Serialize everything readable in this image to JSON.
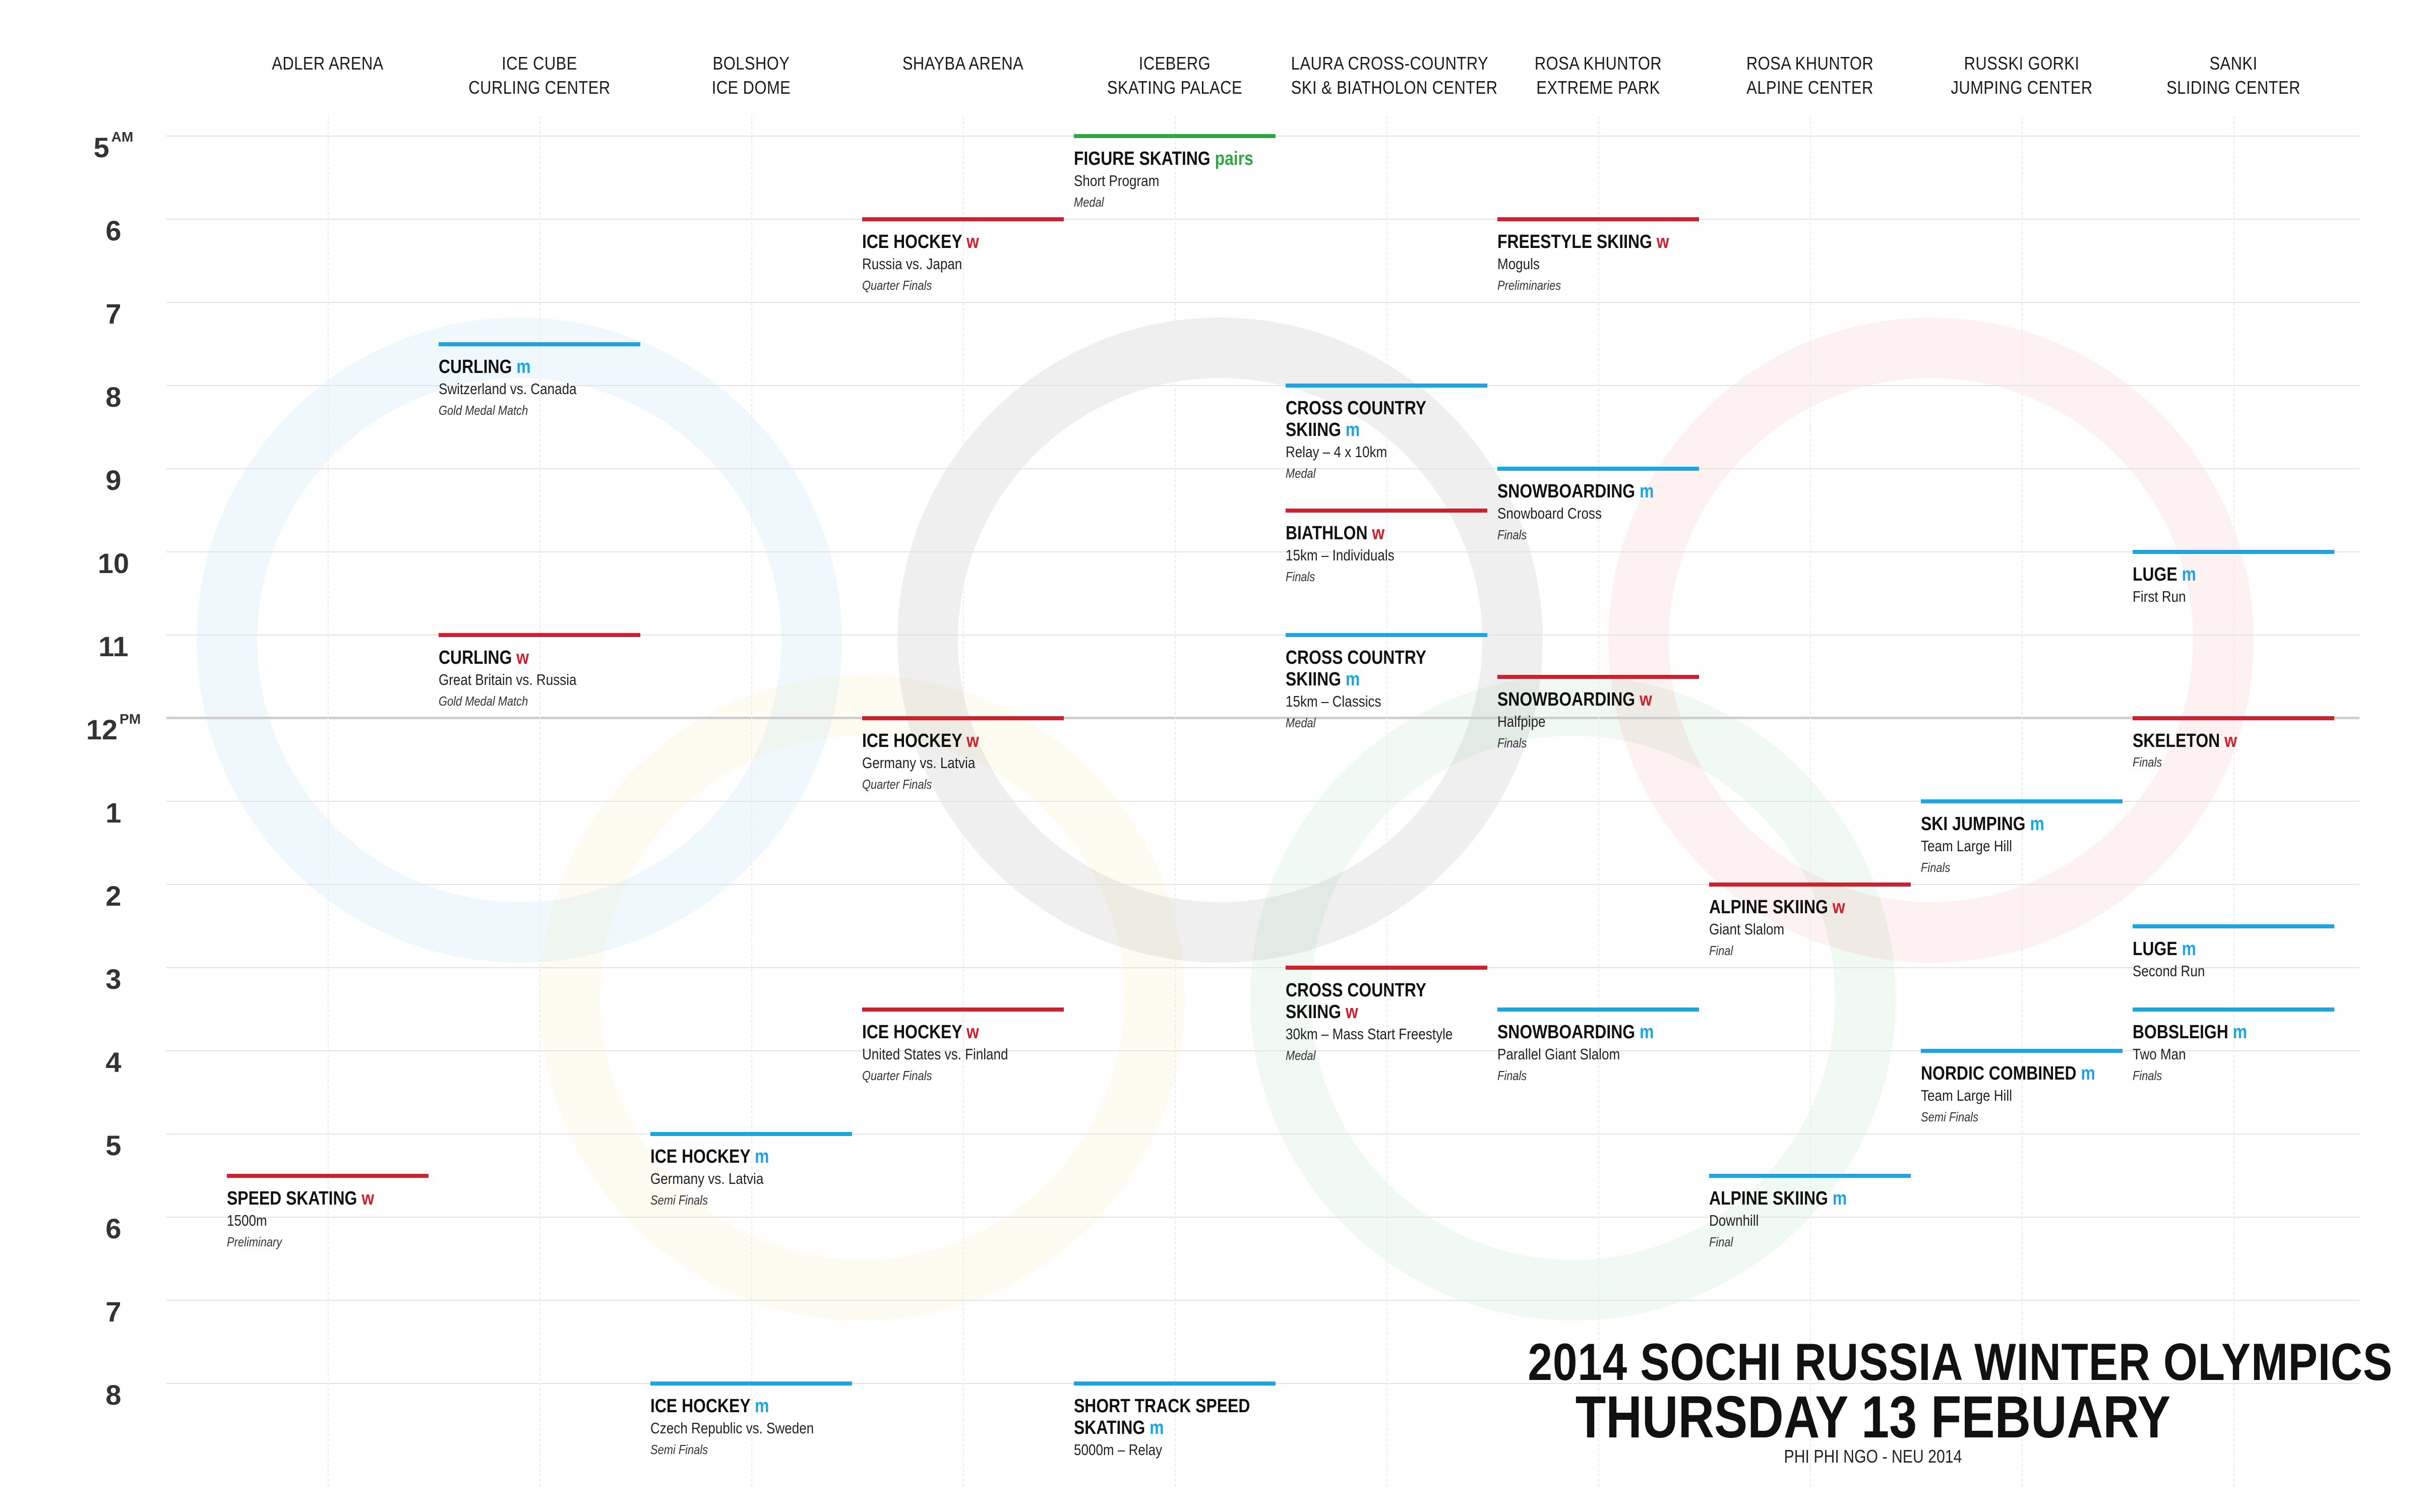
{
  "colors": {
    "women": "#d0202e",
    "men": "#1ba6e3",
    "pairs": "#2ea844",
    "ring_blue": "#1ba6e3",
    "ring_yellow": "#f6c233",
    "ring_black": "#222222",
    "ring_green": "#2ea844",
    "ring_red": "#e03a3e"
  },
  "venues": [
    {
      "lines": [
        "ADLER ARENA"
      ]
    },
    {
      "lines": [
        "ICE CUBE",
        "CURLING CENTER"
      ]
    },
    {
      "lines": [
        "BOLSHOY",
        "ICE DOME"
      ]
    },
    {
      "lines": [
        "SHAYBA ARENA"
      ]
    },
    {
      "lines": [
        "ICEBERG",
        "SKATING PALACE"
      ]
    },
    {
      "lines": [
        "LAURA CROSS-COUNTRY",
        "SKI & BIATHOLON CENTER"
      ]
    },
    {
      "lines": [
        "ROSA KHUNTOR",
        "EXTREME PARK"
      ]
    },
    {
      "lines": [
        "ROSA KHUNTOR",
        "ALPINE CENTER"
      ]
    },
    {
      "lines": [
        "RUSSKI GORKI",
        "JUMPING CENTER"
      ]
    },
    {
      "lines": [
        "SANKI",
        "SLIDING CENTER"
      ]
    }
  ],
  "hours": [
    {
      "label": "5",
      "suffix": "AM"
    },
    {
      "label": "6",
      "suffix": ""
    },
    {
      "label": "7",
      "suffix": ""
    },
    {
      "label": "8",
      "suffix": ""
    },
    {
      "label": "9",
      "suffix": ""
    },
    {
      "label": "10",
      "suffix": ""
    },
    {
      "label": "11",
      "suffix": ""
    },
    {
      "label": "12",
      "suffix": "PM"
    },
    {
      "label": "1",
      "suffix": ""
    },
    {
      "label": "2",
      "suffix": ""
    },
    {
      "label": "3",
      "suffix": ""
    },
    {
      "label": "4",
      "suffix": ""
    },
    {
      "label": "5",
      "suffix": ""
    },
    {
      "label": "6",
      "suffix": ""
    },
    {
      "label": "7",
      "suffix": ""
    },
    {
      "label": "8",
      "suffix": ""
    }
  ],
  "events": [
    {
      "venue": 4,
      "start": 5.0,
      "name": [
        "FIGURE SKATING"
      ],
      "tag": "pairs",
      "kind": "pairs",
      "detail": "Short Program",
      "stage": "Medal"
    },
    {
      "venue": 3,
      "start": 6.0,
      "name": [
        "ICE HOCKEY"
      ],
      "tag": "w",
      "kind": "women",
      "detail": "Russia vs. Japan",
      "stage": "Quarter Finals"
    },
    {
      "venue": 6,
      "start": 6.0,
      "name": [
        "FREESTYLE SKIING"
      ],
      "tag": "w",
      "kind": "women",
      "detail": "Moguls",
      "stage": "Preliminaries"
    },
    {
      "venue": 1,
      "start": 7.5,
      "name": [
        "CURLING"
      ],
      "tag": "m",
      "kind": "men",
      "detail": "Switzerland vs. Canada",
      "stage": "Gold Medal Match"
    },
    {
      "venue": 5,
      "start": 8.0,
      "name": [
        "CROSS COUNTRY",
        "SKIING"
      ],
      "tag": "m",
      "kind": "men",
      "detail": "Relay – 4 x 10km",
      "stage": "Medal"
    },
    {
      "venue": 6,
      "start": 9.0,
      "name": [
        "SNOWBOARDING"
      ],
      "tag": "m",
      "kind": "men",
      "detail": "Snowboard Cross",
      "stage": "Finals"
    },
    {
      "venue": 5,
      "start": 9.5,
      "name": [
        "BIATHLON"
      ],
      "tag": "w",
      "kind": "women",
      "detail": "15km – Individuals",
      "stage": "Finals"
    },
    {
      "venue": 9,
      "start": 10.0,
      "name": [
        "LUGE"
      ],
      "tag": "m",
      "kind": "men",
      "detail": "First Run",
      "stage": ""
    },
    {
      "venue": 1,
      "start": 11.0,
      "name": [
        "CURLING"
      ],
      "tag": "w",
      "kind": "women",
      "detail": "Great Britain vs. Russia",
      "stage": "Gold Medal Match"
    },
    {
      "venue": 5,
      "start": 11.0,
      "name": [
        "CROSS COUNTRY",
        "SKIING"
      ],
      "tag": "m",
      "kind": "men",
      "detail": "15km – Classics",
      "stage": "Medal"
    },
    {
      "venue": 6,
      "start": 11.5,
      "name": [
        "SNOWBOARDING"
      ],
      "tag": "w",
      "kind": "women",
      "detail": "Halfpipe",
      "stage": "Finals"
    },
    {
      "venue": 3,
      "start": 12.0,
      "name": [
        "ICE HOCKEY"
      ],
      "tag": "w",
      "kind": "women",
      "detail": "Germany vs. Latvia",
      "stage": "Quarter Finals"
    },
    {
      "venue": 9,
      "start": 12.0,
      "name": [
        "SKELETON"
      ],
      "tag": "w",
      "kind": "women",
      "detail": "",
      "stage": "Finals"
    },
    {
      "venue": 8,
      "start": 13.0,
      "name": [
        "SKI JUMPING"
      ],
      "tag": "m",
      "kind": "men",
      "detail": "Team Large Hill",
      "stage": "Finals"
    },
    {
      "venue": 7,
      "start": 14.0,
      "name": [
        "ALPINE SKIING"
      ],
      "tag": "w",
      "kind": "women",
      "detail": "Giant Slalom",
      "stage": "Final"
    },
    {
      "venue": 9,
      "start": 14.5,
      "name": [
        "LUGE"
      ],
      "tag": "m",
      "kind": "men",
      "detail": "Second Run",
      "stage": ""
    },
    {
      "venue": 5,
      "start": 15.0,
      "name": [
        "CROSS COUNTRY",
        "SKIING"
      ],
      "tag": "w",
      "kind": "women",
      "detail": "30km – Mass Start Freestyle",
      "stage": "Medal"
    },
    {
      "venue": 3,
      "start": 15.5,
      "name": [
        "ICE HOCKEY"
      ],
      "tag": "w",
      "kind": "women",
      "detail": "United States vs. Finland",
      "stage": "Quarter Finals"
    },
    {
      "venue": 6,
      "start": 15.5,
      "name": [
        "SNOWBOARDING"
      ],
      "tag": "m",
      "kind": "men",
      "detail": "Parallel Giant Slalom",
      "stage": "Finals"
    },
    {
      "venue": 9,
      "start": 15.5,
      "name": [
        "BOBSLEIGH"
      ],
      "tag": "m",
      "kind": "men",
      "detail": "Two Man",
      "stage": "Finals"
    },
    {
      "venue": 8,
      "start": 16.0,
      "name": [
        "NORDIC COMBINED"
      ],
      "tag": "m",
      "kind": "men",
      "detail": "Team Large Hill",
      "stage": "Semi Finals"
    },
    {
      "venue": 2,
      "start": 17.0,
      "name": [
        "ICE HOCKEY"
      ],
      "tag": "m",
      "kind": "men",
      "detail": "Germany vs. Latvia",
      "stage": "Semi Finals"
    },
    {
      "venue": 0,
      "start": 17.5,
      "name": [
        "SPEED SKATING"
      ],
      "tag": "w",
      "kind": "women",
      "detail": "1500m",
      "stage": "Preliminary"
    },
    {
      "venue": 7,
      "start": 17.5,
      "name": [
        "ALPINE SKIING"
      ],
      "tag": "m",
      "kind": "men",
      "detail": "Downhill",
      "stage": "Final"
    },
    {
      "venue": 2,
      "start": 20.0,
      "name": [
        "ICE HOCKEY"
      ],
      "tag": "m",
      "kind": "men",
      "detail": "Czech Republic vs. Sweden",
      "stage": "Semi Finals"
    },
    {
      "venue": 4,
      "start": 20.0,
      "name": [
        "SHORT TRACK SPEED",
        "SKATING"
      ],
      "tag": "m",
      "kind": "men",
      "detail": "5000m – Relay",
      "stage": ""
    }
  ],
  "title": {
    "line1": "2014 SOCHI RUSSIA WINTER OLYMPICS",
    "line2": "THURSDAY 13 FEBUARY",
    "credit": "PHI PHI NGO - NEU 2014"
  }
}
